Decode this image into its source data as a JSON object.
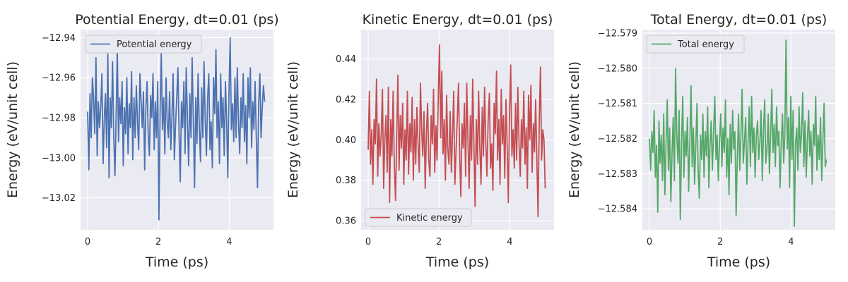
{
  "chart_data": [
    {
      "type": "line",
      "title": "Potential Energy, dt=0.01 (ps)",
      "xlabel": "Time (ps)",
      "ylabel": "Energy (eV/unit cell)",
      "xlim": [
        -0.2,
        5.25
      ],
      "ylim": [
        -13.036,
        -12.936
      ],
      "xticks": [
        0,
        2,
        4
      ],
      "xtick_labels": [
        "0",
        "2",
        "4"
      ],
      "yticks": [
        -13.02,
        -13.0,
        -12.98,
        -12.96,
        -12.94
      ],
      "ytick_labels": [
        "−13.02",
        "−13.00",
        "−12.98",
        "−12.96",
        "−12.94"
      ],
      "grid": true,
      "legend": "upper-left",
      "x_range": [
        0,
        5
      ],
      "series": [
        {
          "name": "Potential energy",
          "color": "#4c72b0",
          "values": [
            -12.977,
            -13.006,
            -12.968,
            -12.99,
            -12.96,
            -12.97,
            -12.988,
            -12.95,
            -12.999,
            -12.972,
            -12.985,
            -12.975,
            -12.958,
            -13.003,
            -12.98,
            -12.968,
            -12.995,
            -12.948,
            -13.01,
            -12.97,
            -12.985,
            -12.952,
            -12.99,
            -13.009,
            -12.978,
            -12.946,
            -12.992,
            -12.97,
            -12.983,
            -12.962,
            -13.004,
            -12.975,
            -12.988,
            -12.96,
            -12.998,
            -12.973,
            -12.985,
            -12.957,
            -13.001,
            -12.97,
            -12.99,
            -12.964,
            -12.982,
            -12.996,
            -12.958,
            -12.972,
            -12.985,
            -12.967,
            -13.006,
            -12.975,
            -12.962,
            -12.988,
            -12.999,
            -12.969,
            -12.98,
            -12.958,
            -12.996,
            -12.972,
            -12.99,
            -12.962,
            -13.031,
            -12.976,
            -12.948,
            -12.986,
            -12.97,
            -12.998,
            -12.96,
            -12.982,
            -12.99,
            -12.967,
            -12.996,
            -12.978,
            -12.958,
            -13.001,
            -12.984,
            -12.97,
            -12.955,
            -12.99,
            -13.012,
            -12.972,
            -12.985,
            -12.962,
            -12.998,
            -12.955,
            -12.98,
            -13.004,
            -12.968,
            -12.99,
            -12.95,
            -12.982,
            -13.015,
            -12.97,
            -12.993,
            -12.958,
            -12.984,
            -13.002,
            -12.965,
            -12.99,
            -12.952,
            -12.981,
            -12.999,
            -12.97,
            -12.958,
            -12.996,
            -12.982,
            -13.005,
            -12.96,
            -12.978,
            -12.946,
            -12.99,
            -12.972,
            -13.003,
            -12.958,
            -12.985,
            -12.97,
            -12.999,
            -12.962,
            -12.982,
            -13.01,
            -12.968,
            -12.94,
            -12.986,
            -12.973,
            -12.992,
            -12.96,
            -12.99,
            -12.955,
            -12.982,
            -12.998,
            -12.97,
            -12.985,
            -12.958,
            -12.992,
            -12.974,
            -13.003,
            -12.96,
            -12.98,
            -12.955,
            -12.995,
            -12.972,
            -12.986,
            -12.962,
            -12.99,
            -13.015,
            -12.972,
            -12.958,
            -12.99,
            -12.975,
            -12.964,
            -12.972
          ]
        }
      ]
    },
    {
      "type": "line",
      "title": "Kinetic Energy, dt=0.01 (ps)",
      "xlabel": "Time (ps)",
      "ylabel": "Energy (eV/unit cell)",
      "xlim": [
        -0.2,
        5.25
      ],
      "ylim": [
        0.3555,
        0.4545
      ],
      "xticks": [
        0,
        2,
        4
      ],
      "xtick_labels": [
        "0",
        "2",
        "4"
      ],
      "yticks": [
        0.36,
        0.38,
        0.4,
        0.42,
        0.44
      ],
      "ytick_labels": [
        "0.36",
        "0.38",
        "0.40",
        "0.42",
        "0.44"
      ],
      "grid": true,
      "legend": "lower-left",
      "x_range": [
        0,
        5
      ],
      "series": [
        {
          "name": "Kinetic energy",
          "color": "#c44e52",
          "values": [
            0.395,
            0.424,
            0.388,
            0.405,
            0.378,
            0.41,
            0.398,
            0.43,
            0.382,
            0.408,
            0.392,
            0.403,
            0.425,
            0.376,
            0.401,
            0.412,
            0.384,
            0.426,
            0.369,
            0.41,
            0.392,
            0.424,
            0.388,
            0.37,
            0.402,
            0.432,
            0.385,
            0.412,
            0.396,
            0.418,
            0.378,
            0.405,
            0.39,
            0.424,
            0.383,
            0.408,
            0.394,
            0.421,
            0.38,
            0.41,
            0.388,
            0.416,
            0.398,
            0.384,
            0.428,
            0.405,
            0.392,
            0.414,
            0.376,
            0.403,
            0.418,
            0.39,
            0.382,
            0.412,
            0.398,
            0.425,
            0.384,
            0.407,
            0.39,
            0.42,
            0.447,
            0.401,
            0.434,
            0.393,
            0.41,
            0.38,
            0.422,
            0.396,
            0.388,
            0.414,
            0.384,
            0.403,
            0.424,
            0.378,
            0.395,
            0.41,
            0.428,
            0.392,
            0.372,
            0.408,
            0.396,
            0.418,
            0.382,
            0.428,
            0.4,
            0.376,
            0.412,
            0.39,
            0.43,
            0.398,
            0.367,
            0.41,
            0.388,
            0.424,
            0.396,
            0.378,
            0.416,
            0.392,
            0.426,
            0.399,
            0.382,
            0.41,
            0.423,
            0.386,
            0.398,
            0.375,
            0.418,
            0.403,
            0.434,
            0.39,
            0.41,
            0.378,
            0.425,
            0.398,
            0.412,
            0.381,
            0.42,
            0.397,
            0.369,
            0.413,
            0.437,
            0.392,
            0.405,
            0.386,
            0.418,
            0.39,
            0.426,
            0.398,
            0.382,
            0.41,
            0.396,
            0.424,
            0.388,
            0.406,
            0.376,
            0.422,
            0.4,
            0.427,
            0.384,
            0.408,
            0.394,
            0.42,
            0.39,
            0.362,
            0.41,
            0.436,
            0.39,
            0.405,
            0.4,
            0.376
          ]
        }
      ]
    },
    {
      "type": "line",
      "title": "Total Energy, dt=0.01 (ps)",
      "xlabel": "Time (ps)",
      "ylabel": "Energy (eV/unit cell)",
      "xlim": [
        -0.2,
        5.25
      ],
      "ylim": [
        -12.5846,
        -12.5789
      ],
      "xticks": [
        0,
        2,
        4
      ],
      "xtick_labels": [
        "0",
        "2",
        "4"
      ],
      "yticks": [
        -12.584,
        -12.583,
        -12.582,
        -12.581,
        -12.58,
        -12.579
      ],
      "ytick_labels": [
        "−12.584",
        "−12.583",
        "−12.582",
        "−12.581",
        "−12.580",
        "−12.579"
      ],
      "grid": true,
      "legend": "upper-left",
      "x_range": [
        0,
        5
      ],
      "series": [
        {
          "name": "Total energy",
          "color": "#55a868",
          "values": [
            -12.582,
            -12.5829,
            -12.5818,
            -12.5824,
            -12.5812,
            -12.5831,
            -12.5822,
            -12.5841,
            -12.5815,
            -12.5827,
            -12.5819,
            -12.5832,
            -12.5813,
            -12.5836,
            -12.5821,
            -12.5809,
            -12.5829,
            -12.5817,
            -12.5838,
            -12.5824,
            -12.5814,
            -12.5832,
            -12.58,
            -12.5819,
            -12.5827,
            -12.5812,
            -12.5843,
            -12.5822,
            -12.5808,
            -12.5831,
            -12.5818,
            -12.5825,
            -12.5814,
            -12.5835,
            -12.5821,
            -12.5805,
            -12.5828,
            -12.5817,
            -12.5833,
            -12.5822,
            -12.581,
            -12.5829,
            -12.5837,
            -12.5819,
            -12.5826,
            -12.5813,
            -12.5831,
            -12.5818,
            -12.5825,
            -12.5811,
            -12.5834,
            -12.5822,
            -12.5815,
            -12.5829,
            -12.5818,
            -12.5808,
            -12.5826,
            -12.5819,
            -12.5832,
            -12.5821,
            -12.5813,
            -12.5828,
            -12.5817,
            -12.5824,
            -12.5809,
            -12.5831,
            -12.582,
            -12.5836,
            -12.5816,
            -12.5827,
            -12.5812,
            -12.5823,
            -12.5818,
            -12.5842,
            -12.5825,
            -12.5813,
            -12.5829,
            -12.5819,
            -12.5806,
            -12.5827,
            -12.5821,
            -12.5814,
            -12.5833,
            -12.5822,
            -12.5811,
            -12.5828,
            -12.5808,
            -12.5824,
            -12.5817,
            -12.5831,
            -12.5819,
            -12.5815,
            -12.5826,
            -12.5821,
            -12.5812,
            -12.5832,
            -12.5818,
            -12.5809,
            -12.5827,
            -12.5823,
            -12.5813,
            -12.583,
            -12.5819,
            -12.5806,
            -12.5824,
            -12.5816,
            -12.5828,
            -12.5811,
            -12.5822,
            -12.5818,
            -12.5834,
            -12.5821,
            -12.5813,
            -12.5827,
            -12.5819,
            -12.5792,
            -12.5823,
            -12.5814,
            -12.5834,
            -12.5808,
            -12.5826,
            -12.5812,
            -12.5845,
            -12.5821,
            -12.5817,
            -12.5829,
            -12.5811,
            -12.5824,
            -12.5819,
            -12.5807,
            -12.5828,
            -12.5815,
            -12.5831,
            -12.582,
            -12.5812,
            -12.5825,
            -12.5818,
            -12.5833,
            -12.5816,
            -12.5822,
            -12.5808,
            -12.5829,
            -12.5819,
            -12.5826,
            -12.5814,
            -12.5832,
            -12.5821,
            -12.581,
            -12.5828,
            -12.5826
          ]
        }
      ]
    }
  ]
}
